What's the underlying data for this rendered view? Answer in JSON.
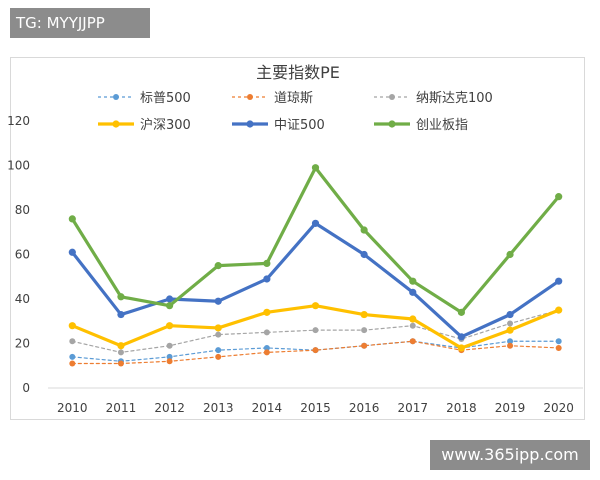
{
  "watermarks": {
    "top_left": "TG: MYYJJPP",
    "bottom_right": "www.365ipp.com"
  },
  "chart_data": {
    "type": "line",
    "title": "主要指数PE",
    "xlabel": "",
    "ylabel": "",
    "ylim": [
      0,
      120
    ],
    "yticks": [
      0,
      20,
      40,
      60,
      80,
      100,
      120
    ],
    "grid": false,
    "legend_position": "top",
    "categories": [
      "2010",
      "2011",
      "2012",
      "2013",
      "2014",
      "2015",
      "2016",
      "2017",
      "2018",
      "2019",
      "2020"
    ],
    "series": [
      {
        "name": "标普500",
        "color": "#5b9bd5",
        "style": "dashed",
        "thin": true,
        "values": [
          14,
          12,
          14,
          17,
          18,
          17,
          19,
          21,
          18,
          21,
          21
        ]
      },
      {
        "name": "道琼斯",
        "color": "#ed7d31",
        "style": "dashed",
        "thin": true,
        "values": [
          11,
          11,
          12,
          14,
          16,
          17,
          19,
          21,
          17,
          19,
          18
        ]
      },
      {
        "name": "纳斯达克100",
        "color": "#a5a5a5",
        "style": "dashed",
        "thin": true,
        "values": [
          21,
          16,
          19,
          24,
          25,
          26,
          26,
          28,
          22,
          29,
          35
        ]
      },
      {
        "name": "沪深300",
        "color": "#ffc000",
        "style": "solid",
        "thin": false,
        "values": [
          28,
          19,
          28,
          27,
          34,
          37,
          33,
          31,
          18,
          26,
          35
        ]
      },
      {
        "name": "中证500",
        "color": "#4472c4",
        "style": "solid",
        "thin": false,
        "values": [
          61,
          33,
          40,
          39,
          49,
          74,
          60,
          43,
          23,
          33,
          48
        ]
      },
      {
        "name": "创业板指",
        "color": "#70ad47",
        "style": "solid",
        "thin": false,
        "values": [
          76,
          41,
          37,
          55,
          56,
          99,
          71,
          48,
          34,
          60,
          86
        ]
      }
    ]
  }
}
